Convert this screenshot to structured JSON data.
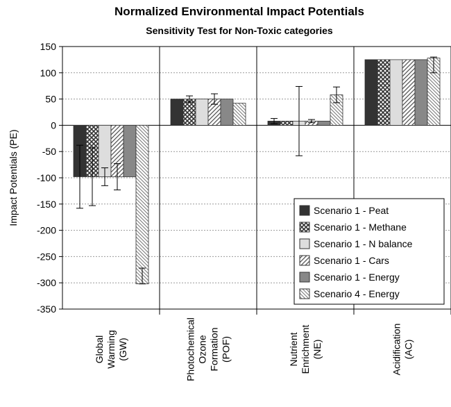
{
  "chart_data": {
    "type": "bar",
    "title": "Normalized Environmental Impact Potentials",
    "subtitle": "Sensitivity Test for Non-Toxic categories",
    "y_label": "Impact Potentials (PE)",
    "categories": [
      [
        "Global",
        "Warming",
        "(GW)"
      ],
      [
        "Photochemical",
        "Ozone",
        "Formation",
        "(POF)"
      ],
      [
        "Nutrient",
        "Enrichment",
        "(NE)"
      ],
      [
        "Acidification",
        "(AC)"
      ]
    ],
    "series": [
      {
        "name": "Scenario 1 - Peat",
        "color": "#333333",
        "fill": "solid",
        "values": [
          -98,
          50,
          8,
          125
        ],
        "error_minus": [
          60,
          null,
          5,
          null
        ],
        "error_plus": [
          60,
          null,
          5,
          null
        ]
      },
      {
        "name": "Scenario 1 - Methane",
        "color": "#333333",
        "fill": "crosshatch",
        "values": [
          -98,
          50,
          8,
          125
        ],
        "error_minus": [
          55,
          6,
          null,
          null
        ],
        "error_plus": [
          55,
          6,
          null,
          null
        ]
      },
      {
        "name": "Scenario 1 - N balance",
        "color": "#dddddd",
        "fill": "solid",
        "values": [
          -98,
          50,
          8,
          125
        ],
        "error_minus": [
          17,
          null,
          66,
          null
        ],
        "error_plus": [
          17,
          null,
          66,
          null
        ]
      },
      {
        "name": "Scenario 1 - Cars",
        "color": "#555555",
        "fill": "hatch",
        "values": [
          -98,
          50,
          8,
          125
        ],
        "error_minus": [
          25,
          10,
          3,
          null
        ],
        "error_plus": [
          25,
          10,
          3,
          null
        ]
      },
      {
        "name": "Scenario 1 - Energy",
        "color": "#888888",
        "fill": "solid",
        "values": [
          -98,
          50,
          8,
          125
        ],
        "error_minus": [
          null,
          null,
          null,
          null
        ],
        "error_plus": [
          null,
          null,
          null,
          null
        ]
      },
      {
        "name": "Scenario 4 - Energy",
        "color": "#777777",
        "fill": "hatch-light",
        "values": [
          -302,
          42,
          58,
          128
        ],
        "error_minus": [
          0,
          null,
          15,
          28
        ],
        "error_plus": [
          30,
          null,
          15,
          2
        ]
      }
    ],
    "ylim": [
      -350,
      150
    ],
    "yticks": [
      -350,
      -300,
      -250,
      -200,
      -150,
      -100,
      -50,
      0,
      50,
      100,
      150
    ],
    "grid": true,
    "legend": "lower right"
  }
}
